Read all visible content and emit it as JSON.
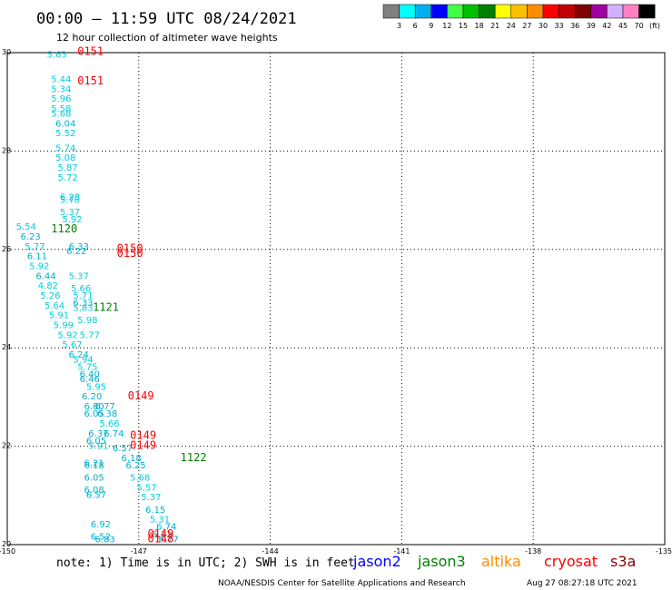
{
  "title": "00:00 – 11:59 UTC 08/24/2021",
  "subtitle": "12 hour collection of altimeter wave heights",
  "note": "note:  1) Time is in UTC; 2) SWH is in feet",
  "credit": "NOAA/NESDIS Center for Satellite Applications and Research",
  "timestamp": "Aug 27 08:27:18 UTC 2021",
  "legend_missions": [
    {
      "name": "jason2",
      "color": "#0000ff"
    },
    {
      "name": "jason3",
      "color": "#008000"
    },
    {
      "name": "altika",
      "color": "#ff8c00"
    },
    {
      "name": "cryosat",
      "color": "#ff0000"
    },
    {
      "name": "s3a",
      "color": "#8b0000"
    }
  ],
  "colorbar": {
    "labels": [
      "3",
      "6",
      "9",
      "12",
      "15",
      "18",
      "21",
      "24",
      "27",
      "30",
      "33",
      "36",
      "39",
      "42",
      "45",
      "70"
    ],
    "unit": "(ft)",
    "colors": [
      "#808080",
      "#00ffff",
      "#00b0f0",
      "#0000ff",
      "#40ff40",
      "#00c000",
      "#008000",
      "#ffff00",
      "#ffc000",
      "#ff8c00",
      "#ff0000",
      "#c00000",
      "#800000",
      "#a000a0",
      "#d0b0ff",
      "#ff80c0",
      "#000000"
    ]
  },
  "chart_data": {
    "type": "scatter",
    "xlim": [
      -150,
      -135
    ],
    "ylim": [
      20,
      30
    ],
    "xticks": [
      "-150",
      "-147",
      "-144",
      "-141",
      "-138",
      "-135"
    ],
    "xtick_values": [
      -150,
      -147,
      -144,
      -141,
      -138,
      -135
    ],
    "yticks": [
      "20",
      "22",
      "24",
      "26",
      "28",
      "30"
    ],
    "ytick_values": [
      20,
      22,
      24,
      26,
      28,
      30
    ],
    "grid": true,
    "points": [
      {
        "x": -149.1,
        "y": 29.9,
        "label": "5.63",
        "color": "#00cfe0"
      },
      {
        "x": -149.0,
        "y": 29.4,
        "label": "5.44",
        "color": "#00cfe0"
      },
      {
        "x": -149.0,
        "y": 29.2,
        "label": "5.34",
        "color": "#00cfe0"
      },
      {
        "x": -149.0,
        "y": 29.0,
        "label": "5.96",
        "color": "#00cfe0"
      },
      {
        "x": -149.0,
        "y": 28.8,
        "label": "5.58",
        "color": "#00cfe0"
      },
      {
        "x": -149.0,
        "y": 28.7,
        "label": "5.68",
        "color": "#00cfe0"
      },
      {
        "x": -148.9,
        "y": 28.5,
        "label": "6.04",
        "color": "#00b0d0"
      },
      {
        "x": -148.9,
        "y": 28.3,
        "label": "5.52",
        "color": "#00cfe0"
      },
      {
        "x": -148.9,
        "y": 28.0,
        "label": "5.74",
        "color": "#00cfe0"
      },
      {
        "x": -148.9,
        "y": 27.8,
        "label": "5.08",
        "color": "#00cfe0"
      },
      {
        "x": -148.85,
        "y": 27.6,
        "label": "5.87",
        "color": "#00cfe0"
      },
      {
        "x": -148.85,
        "y": 27.4,
        "label": "5.72",
        "color": "#00cfe0"
      },
      {
        "x": -148.8,
        "y": 27.0,
        "label": "6.28",
        "color": "#00b0d0"
      },
      {
        "x": -148.8,
        "y": 26.95,
        "label": "5.78",
        "color": "#00cfe0"
      },
      {
        "x": -148.8,
        "y": 26.7,
        "label": "5.37",
        "color": "#00cfe0"
      },
      {
        "x": -148.75,
        "y": 26.55,
        "label": "5.92",
        "color": "#00cfe0"
      },
      {
        "x": -149.8,
        "y": 26.4,
        "label": "5.54",
        "color": "#00cfe0"
      },
      {
        "x": -149.7,
        "y": 26.2,
        "label": "6.23",
        "color": "#00b0d0"
      },
      {
        "x": -149.6,
        "y": 26.0,
        "label": "5.77",
        "color": "#00cfe0"
      },
      {
        "x": -149.55,
        "y": 25.8,
        "label": "6.11",
        "color": "#00b0d0"
      },
      {
        "x": -149.5,
        "y": 25.6,
        "label": "5.92",
        "color": "#00cfe0"
      },
      {
        "x": -149.35,
        "y": 25.4,
        "label": "6.44",
        "color": "#00b0d0"
      },
      {
        "x": -149.3,
        "y": 25.2,
        "label": "4.82",
        "color": "#00cfe0"
      },
      {
        "x": -149.25,
        "y": 25.0,
        "label": "5.26",
        "color": "#00cfe0"
      },
      {
        "x": -149.15,
        "y": 24.8,
        "label": "5.64",
        "color": "#00cfe0"
      },
      {
        "x": -149.05,
        "y": 24.6,
        "label": "5.91",
        "color": "#00cfe0"
      },
      {
        "x": -148.95,
        "y": 24.4,
        "label": "5.99",
        "color": "#00cfe0"
      },
      {
        "x": -148.85,
        "y": 24.2,
        "label": "5.92",
        "color": "#00cfe0"
      },
      {
        "x": -148.75,
        "y": 24.0,
        "label": "5.67",
        "color": "#00cfe0"
      },
      {
        "x": -148.6,
        "y": 26.0,
        "label": "6.33",
        "color": "#00b0d0"
      },
      {
        "x": -148.65,
        "y": 25.9,
        "label": "6.22",
        "color": "#00b0d0"
      },
      {
        "x": -148.6,
        "y": 25.4,
        "label": "5.37",
        "color": "#00cfe0"
      },
      {
        "x": -148.55,
        "y": 25.15,
        "label": "5.66",
        "color": "#00cfe0"
      },
      {
        "x": -148.5,
        "y": 25.0,
        "label": "5.71",
        "color": "#00cfe0"
      },
      {
        "x": -148.5,
        "y": 24.85,
        "label": "6.33",
        "color": "#00b0d0"
      },
      {
        "x": -148.5,
        "y": 24.75,
        "label": "5.83",
        "color": "#00cfe0"
      },
      {
        "x": -148.4,
        "y": 24.5,
        "label": "5.98",
        "color": "#00cfe0"
      },
      {
        "x": -148.35,
        "y": 24.2,
        "label": "5.77",
        "color": "#00cfe0"
      },
      {
        "x": -148.6,
        "y": 23.8,
        "label": "6.24",
        "color": "#00b0d0"
      },
      {
        "x": -148.5,
        "y": 23.7,
        "label": "5.94",
        "color": "#00cfe0"
      },
      {
        "x": -148.4,
        "y": 23.55,
        "label": "5.75",
        "color": "#00cfe0"
      },
      {
        "x": -148.35,
        "y": 23.4,
        "label": "6.40",
        "color": "#00b0d0"
      },
      {
        "x": -148.35,
        "y": 23.3,
        "label": "6.46",
        "color": "#00b0d0"
      },
      {
        "x": -148.2,
        "y": 23.15,
        "label": "5.95",
        "color": "#00cfe0"
      },
      {
        "x": -148.3,
        "y": 22.95,
        "label": "6.20",
        "color": "#00b0d0"
      },
      {
        "x": -148.25,
        "y": 22.75,
        "label": "6.80",
        "color": "#00b0d0"
      },
      {
        "x": -148.0,
        "y": 22.75,
        "label": "6.77",
        "color": "#00b0d0"
      },
      {
        "x": -148.25,
        "y": 22.6,
        "label": "6.05",
        "color": "#00b0d0"
      },
      {
        "x": -147.95,
        "y": 22.6,
        "label": "6.38",
        "color": "#00b0d0"
      },
      {
        "x": -147.9,
        "y": 22.4,
        "label": "5.66",
        "color": "#00cfe0"
      },
      {
        "x": -148.15,
        "y": 22.2,
        "label": "6.37",
        "color": "#00b0d0"
      },
      {
        "x": -147.8,
        "y": 22.2,
        "label": "6.74",
        "color": "#00b0d0"
      },
      {
        "x": -148.2,
        "y": 22.05,
        "label": "6.05",
        "color": "#00b0d0"
      },
      {
        "x": -148.15,
        "y": 21.95,
        "label": "5.91",
        "color": "#00cfe0"
      },
      {
        "x": -147.6,
        "y": 21.9,
        "label": "6.57",
        "color": "#00b0d0"
      },
      {
        "x": -147.4,
        "y": 21.7,
        "label": "6.18",
        "color": "#00b0d0"
      },
      {
        "x": -147.3,
        "y": 21.55,
        "label": "6.25",
        "color": "#00b0d0"
      },
      {
        "x": -148.25,
        "y": 21.6,
        "label": "6.21",
        "color": "#00b0d0"
      },
      {
        "x": -148.25,
        "y": 21.55,
        "label": "6.18",
        "color": "#00b0d0"
      },
      {
        "x": -148.25,
        "y": 21.3,
        "label": "6.05",
        "color": "#00b0d0"
      },
      {
        "x": -147.2,
        "y": 21.3,
        "label": "5.68",
        "color": "#00cfe0"
      },
      {
        "x": -148.25,
        "y": 21.05,
        "label": "6.08",
        "color": "#00b0d0"
      },
      {
        "x": -147.05,
        "y": 21.1,
        "label": "5.57",
        "color": "#00cfe0"
      },
      {
        "x": -148.2,
        "y": 20.95,
        "label": "6.57",
        "color": "#00b0d0"
      },
      {
        "x": -146.95,
        "y": 20.9,
        "label": "5.37",
        "color": "#00cfe0"
      },
      {
        "x": -146.85,
        "y": 20.65,
        "label": "6.15",
        "color": "#00b0d0"
      },
      {
        "x": -146.75,
        "y": 20.45,
        "label": "5.31",
        "color": "#00cfe0"
      },
      {
        "x": -148.1,
        "y": 20.35,
        "label": "6.92",
        "color": "#00b0d0"
      },
      {
        "x": -146.6,
        "y": 20.3,
        "label": "6.74",
        "color": "#00b0d0"
      },
      {
        "x": -146.7,
        "y": 20.15,
        "label": "6.12",
        "color": "#00b0d0"
      },
      {
        "x": -148.1,
        "y": 20.1,
        "label": "6.52",
        "color": "#00b0d0"
      },
      {
        "x": -148.0,
        "y": 20.05,
        "label": "6.83",
        "color": "#00b0d0"
      },
      {
        "x": -146.55,
        "y": 20.05,
        "label": "6.77",
        "color": "#00b0d0"
      }
    ],
    "pass_labels": [
      {
        "x": -148.4,
        "y": 29.95,
        "label": "0151",
        "color": "#ff0000"
      },
      {
        "x": -148.4,
        "y": 29.35,
        "label": "0151",
        "color": "#ff0000"
      },
      {
        "x": -149.0,
        "y": 26.35,
        "label": "1120",
        "color": "#008000"
      },
      {
        "x": -147.5,
        "y": 25.95,
        "label": "0150",
        "color": "#ff0000"
      },
      {
        "x": -147.5,
        "y": 25.85,
        "label": "0150",
        "color": "#ff0000"
      },
      {
        "x": -148.05,
        "y": 24.75,
        "label": "1121",
        "color": "#008000"
      },
      {
        "x": -147.25,
        "y": 22.95,
        "label": "0149",
        "color": "#ff0000"
      },
      {
        "x": -147.2,
        "y": 22.15,
        "label": "0149",
        "color": "#ff0000"
      },
      {
        "x": -147.2,
        "y": 21.95,
        "label": "0149",
        "color": "#ff0000"
      },
      {
        "x": -146.05,
        "y": 21.7,
        "label": "1122",
        "color": "#008000"
      },
      {
        "x": -146.8,
        "y": 20.15,
        "label": "0149",
        "color": "#ff0000"
      },
      {
        "x": -146.8,
        "y": 20.05,
        "label": "0148",
        "color": "#ff0000"
      }
    ]
  }
}
